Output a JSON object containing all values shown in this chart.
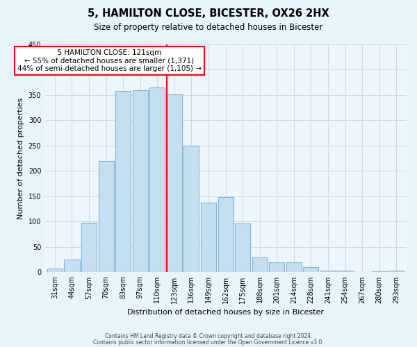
{
  "title": "5, HAMILTON CLOSE, BICESTER, OX26 2HX",
  "subtitle": "Size of property relative to detached houses in Bicester",
  "xlabel": "Distribution of detached houses by size in Bicester",
  "ylabel": "Number of detached properties",
  "footer_line1": "Contains HM Land Registry data © Crown copyright and database right 2024.",
  "footer_line2": "Contains public sector information licensed under the Open Government Licence v3.0.",
  "bar_labels": [
    "31sqm",
    "44sqm",
    "57sqm",
    "70sqm",
    "83sqm",
    "97sqm",
    "110sqm",
    "123sqm",
    "136sqm",
    "149sqm",
    "162sqm",
    "175sqm",
    "188sqm",
    "201sqm",
    "214sqm",
    "228sqm",
    "241sqm",
    "254sqm",
    "267sqm",
    "280sqm",
    "293sqm"
  ],
  "bar_values": [
    8,
    25,
    98,
    220,
    358,
    360,
    365,
    352,
    250,
    138,
    148,
    97,
    30,
    20,
    20,
    10,
    3,
    3,
    1,
    2,
    3
  ],
  "bar_color": "#c6dff0",
  "bar_edge_color": "#7fb5d5",
  "highlight_index": 7,
  "highlight_color": "red",
  "annotation_title": "5 HAMILTON CLOSE: 121sqm",
  "annotation_line1": "← 55% of detached houses are smaller (1,371)",
  "annotation_line2": "44% of semi-detached houses are larger (1,105) →",
  "annotation_box_color": "white",
  "annotation_box_edge": "red",
  "ylim": [
    0,
    450
  ],
  "yticks": [
    0,
    50,
    100,
    150,
    200,
    250,
    300,
    350,
    400,
    450
  ],
  "bg_color": "#e8f4fb",
  "plot_bg_color": "#eef6fc",
  "grid_color": "#c8dce8"
}
